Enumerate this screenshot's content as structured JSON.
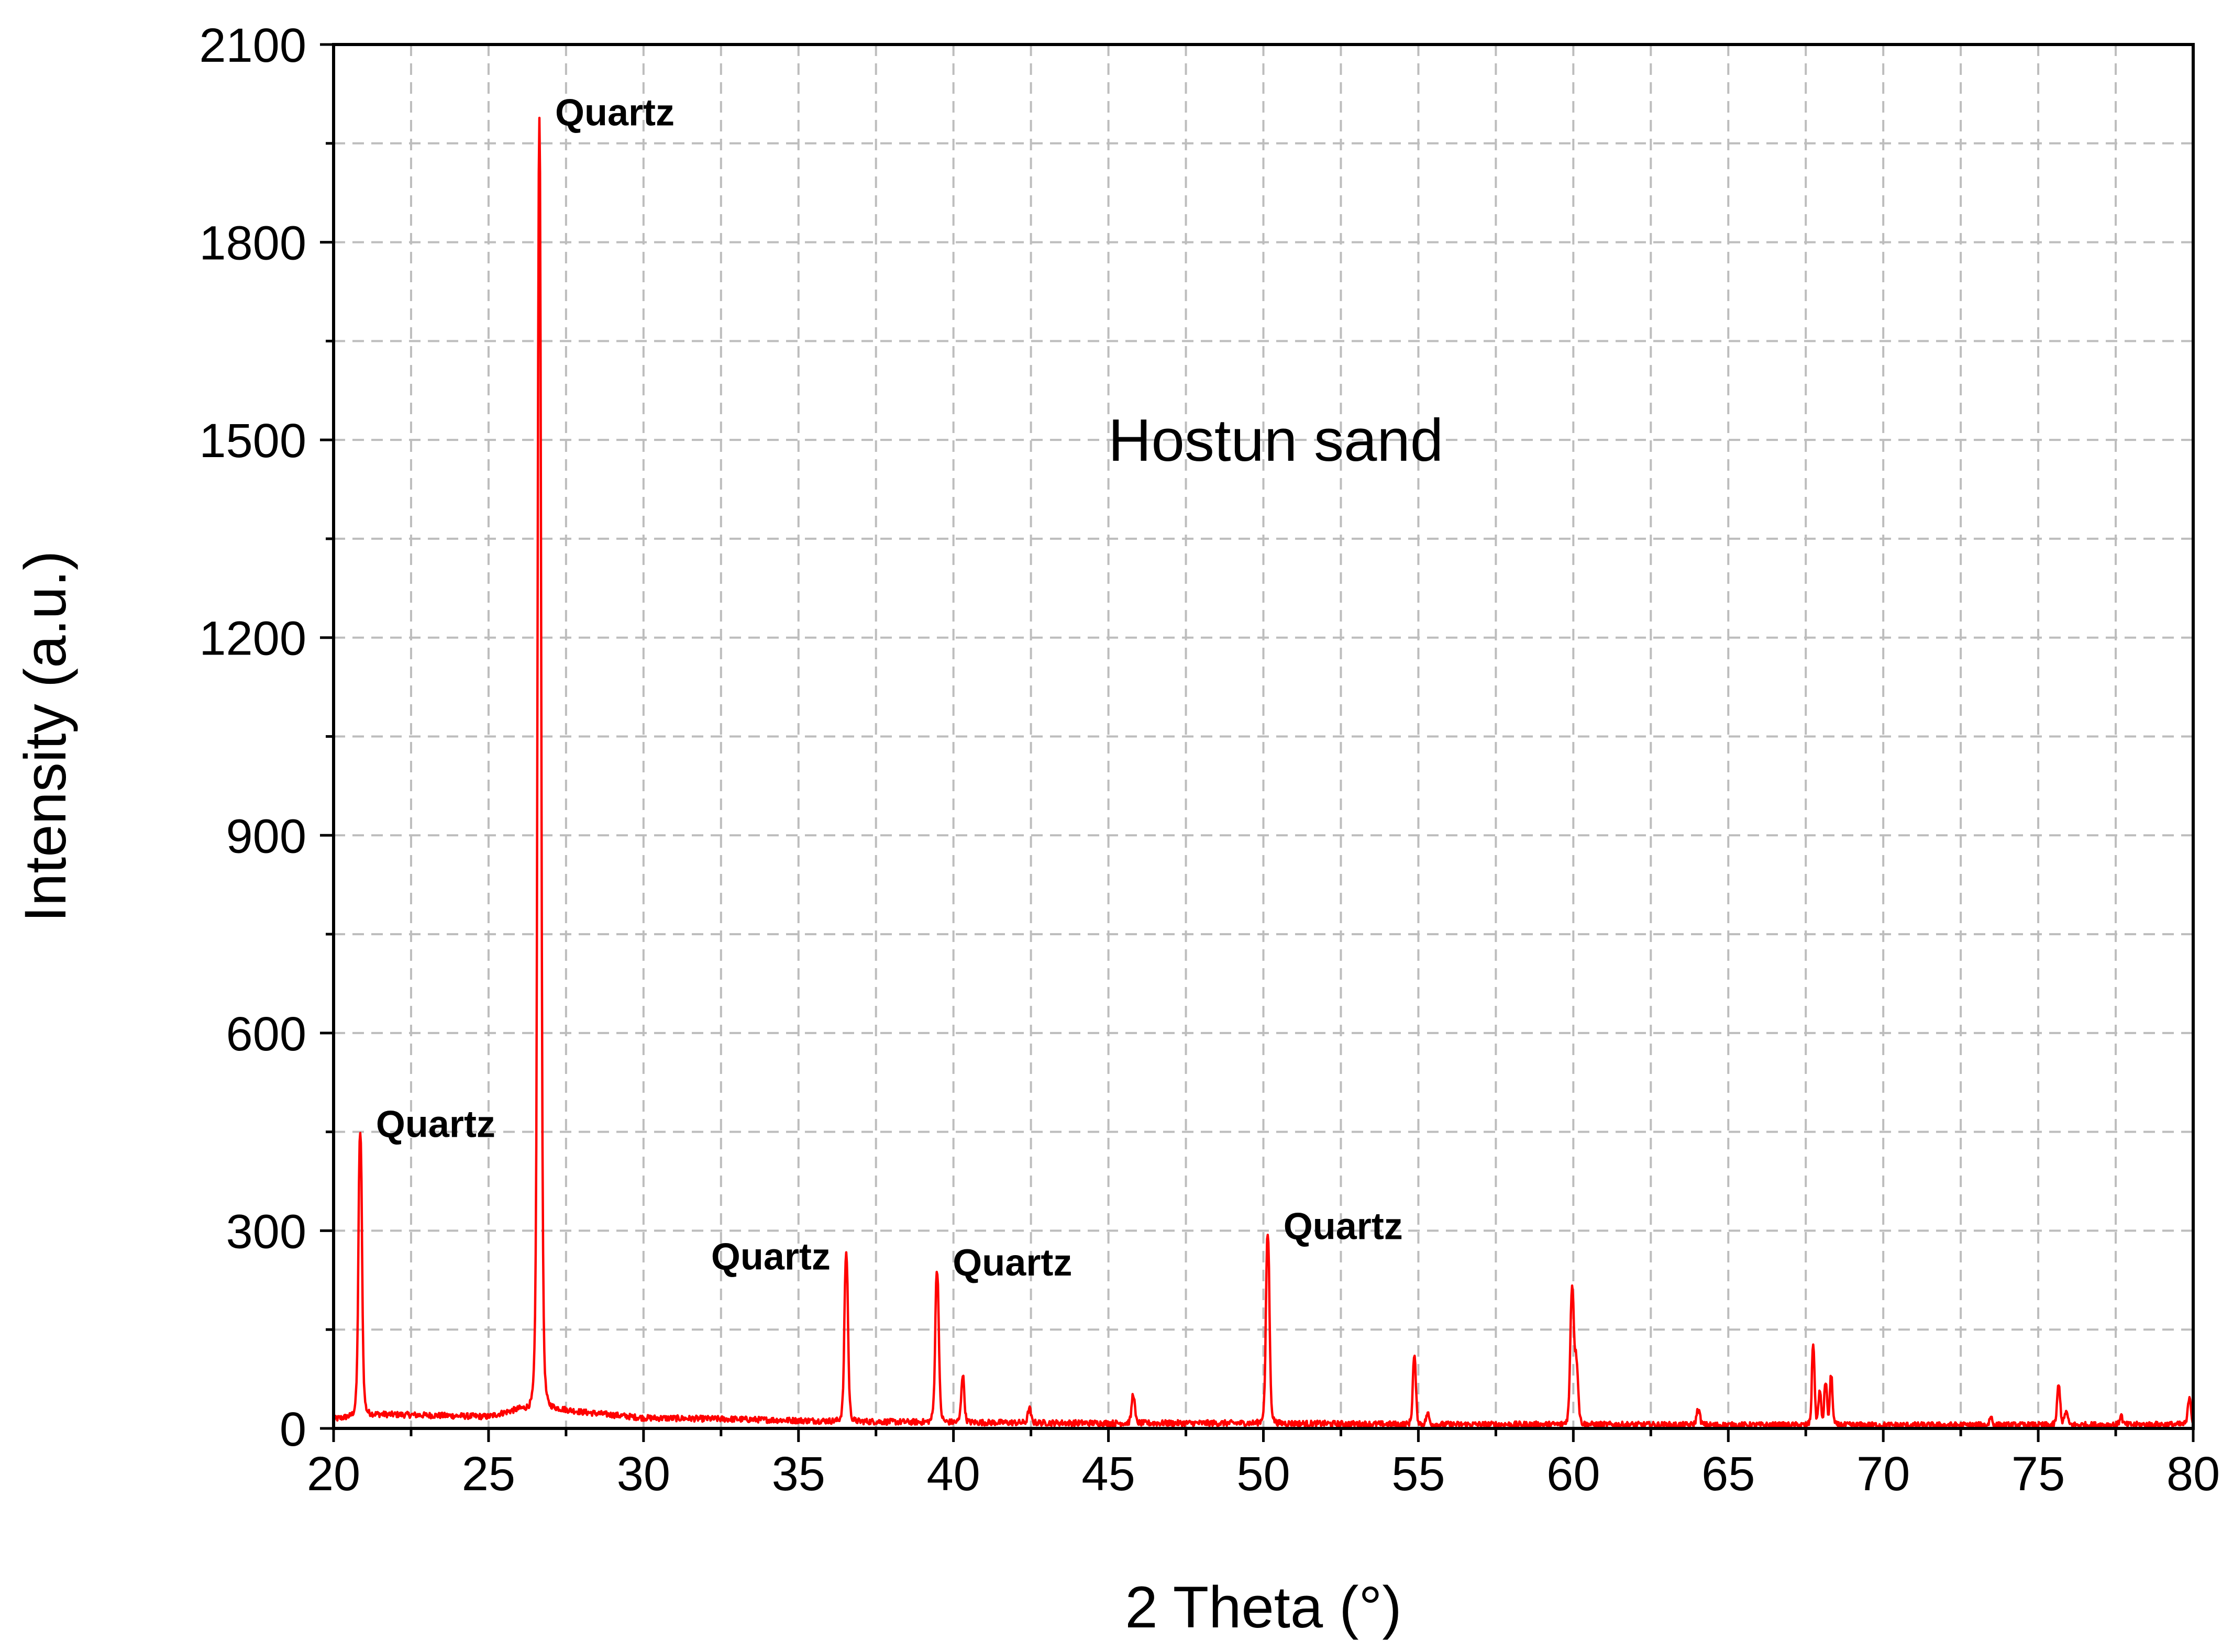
{
  "chart_data": {
    "type": "line",
    "title": "Hostun sand",
    "xlabel": "2 Theta (°)",
    "ylabel": "Intensity (a.u.)",
    "xlim": [
      20,
      80
    ],
    "ylim": [
      0,
      2100
    ],
    "xticks": [
      20,
      25,
      30,
      35,
      40,
      45,
      50,
      55,
      60,
      65,
      70,
      75,
      80
    ],
    "yticks": [
      0,
      300,
      600,
      900,
      1200,
      1500,
      1800,
      2100
    ],
    "x_minor_step": 2.5,
    "y_minor_step": 150,
    "grid": true,
    "legend": "none",
    "series_color": "#ff0000",
    "baseline": [
      [
        20,
        14
      ],
      [
        21,
        22
      ],
      [
        23,
        20
      ],
      [
        25,
        18
      ],
      [
        26,
        30
      ],
      [
        27,
        32
      ],
      [
        28,
        25
      ],
      [
        30,
        16
      ],
      [
        33,
        14
      ],
      [
        35,
        12
      ],
      [
        38,
        10
      ],
      [
        41,
        9
      ],
      [
        45,
        8
      ],
      [
        50,
        8
      ],
      [
        55,
        6
      ],
      [
        60,
        6
      ],
      [
        65,
        5
      ],
      [
        70,
        5
      ],
      [
        75,
        5
      ],
      [
        80,
        6
      ]
    ],
    "peaks": [
      {
        "x": 20.86,
        "y": 450,
        "width": 0.08
      },
      {
        "x": 26.64,
        "y": 1985,
        "width": 0.08
      },
      {
        "x": 36.54,
        "y": 265,
        "width": 0.08
      },
      {
        "x": 39.47,
        "y": 240,
        "width": 0.08
      },
      {
        "x": 40.3,
        "y": 80,
        "width": 0.07
      },
      {
        "x": 42.45,
        "y": 30,
        "width": 0.07
      },
      {
        "x": 45.8,
        "y": 52,
        "width": 0.07
      },
      {
        "x": 50.14,
        "y": 295,
        "width": 0.08
      },
      {
        "x": 54.87,
        "y": 108,
        "width": 0.07
      },
      {
        "x": 55.3,
        "y": 22,
        "width": 0.07
      },
      {
        "x": 59.96,
        "y": 210,
        "width": 0.08
      },
      {
        "x": 60.1,
        "y": 95,
        "width": 0.08
      },
      {
        "x": 64.03,
        "y": 28,
        "width": 0.08
      },
      {
        "x": 67.74,
        "y": 128,
        "width": 0.06
      },
      {
        "x": 67.95,
        "y": 55,
        "width": 0.06
      },
      {
        "x": 68.14,
        "y": 70,
        "width": 0.06
      },
      {
        "x": 68.32,
        "y": 80,
        "width": 0.06
      },
      {
        "x": 73.47,
        "y": 18,
        "width": 0.06
      },
      {
        "x": 75.66,
        "y": 65,
        "width": 0.07
      },
      {
        "x": 75.9,
        "y": 25,
        "width": 0.07
      },
      {
        "x": 77.67,
        "y": 20,
        "width": 0.06
      },
      {
        "x": 79.88,
        "y": 48,
        "width": 0.07
      }
    ],
    "annotations": [
      {
        "text": "Quartz",
        "x": 20.86,
        "y": 450,
        "anchor": "right"
      },
      {
        "text": "Quartz",
        "x": 26.64,
        "y": 1985,
        "anchor": "right"
      },
      {
        "text": "Quartz",
        "x": 36.54,
        "y": 265,
        "anchor": "left"
      },
      {
        "text": "Quartz",
        "x": 39.47,
        "y": 240,
        "anchor": "right"
      },
      {
        "text": "Quartz",
        "x": 50.14,
        "y": 295,
        "anchor": "right"
      }
    ]
  }
}
